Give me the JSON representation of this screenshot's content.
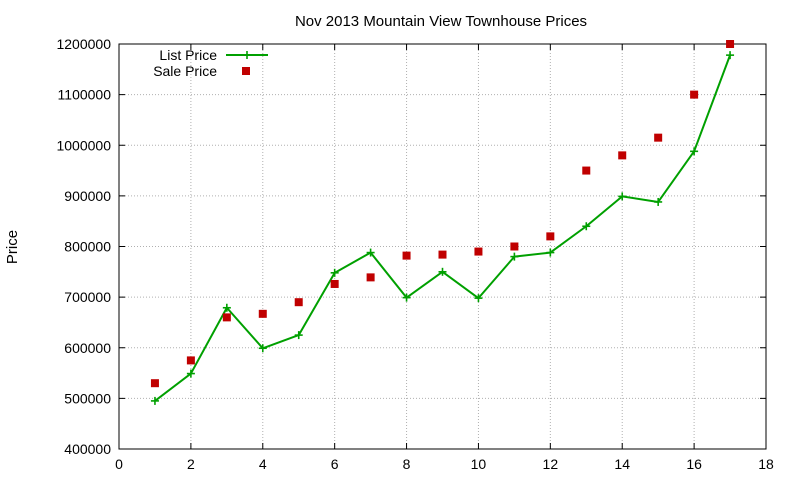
{
  "chart_data": {
    "type": "line",
    "title": "Nov 2013 Mountain View Townhouse Prices",
    "xlabel": "",
    "ylabel": "Price",
    "xlim": [
      0,
      18
    ],
    "ylim": [
      400000,
      1200000
    ],
    "xticks": [
      0,
      2,
      4,
      6,
      8,
      10,
      12,
      14,
      16,
      18
    ],
    "yticks": [
      400000,
      500000,
      600000,
      700000,
      800000,
      900000,
      1000000,
      1100000,
      1200000
    ],
    "xtick_labels": [
      "0",
      "2",
      "4",
      "6",
      "8",
      "10",
      "12",
      "14",
      "16",
      "18"
    ],
    "ytick_labels": [
      "400000",
      "500000",
      "600000",
      "700000",
      "800000",
      "900000",
      "1000000",
      "1100000",
      "1200000"
    ],
    "grid": true,
    "legend_position": "top-left",
    "series": [
      {
        "name": "List Price",
        "style": "line-with-plus-markers",
        "color": "#00a000",
        "x": [
          1,
          2,
          3,
          4,
          5,
          6,
          7,
          8,
          9,
          10,
          11,
          12,
          13,
          14,
          15,
          16,
          17
        ],
        "y": [
          495000,
          549000,
          679000,
          599000,
          625000,
          748000,
          788000,
          699000,
          750000,
          698000,
          780000,
          788000,
          840000,
          899000,
          888000,
          988000,
          1178000
        ]
      },
      {
        "name": "Sale Price",
        "style": "square-markers",
        "color": "#c00000",
        "x": [
          1,
          2,
          3,
          4,
          5,
          6,
          7,
          8,
          9,
          10,
          11,
          12,
          13,
          14,
          15,
          16,
          17
        ],
        "y": [
          530000,
          575000,
          660000,
          667000,
          690000,
          726000,
          739000,
          782000,
          784000,
          790000,
          800000,
          820000,
          950000,
          980000,
          1015000,
          1100000,
          1200000
        ]
      }
    ]
  }
}
